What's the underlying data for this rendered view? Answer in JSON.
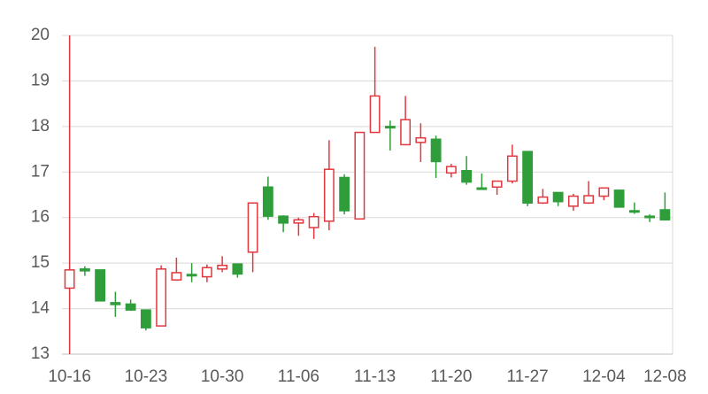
{
  "chart_data": {
    "type": "candlestick",
    "categories": [
      "10-16",
      null,
      null,
      null,
      null,
      "10-23",
      null,
      null,
      null,
      null,
      "10-30",
      null,
      null,
      null,
      null,
      "11-06",
      null,
      null,
      null,
      null,
      "11-13",
      null,
      null,
      null,
      null,
      "11-20",
      null,
      null,
      null,
      null,
      "11-27",
      null,
      null,
      null,
      null,
      "12-04",
      null,
      null,
      null,
      "12-08"
    ],
    "open": [
      14.45,
      14.87,
      14.85,
      14.13,
      14.1,
      13.97,
      13.62,
      14.63,
      14.75,
      14.7,
      14.87,
      14.98,
      15.24,
      16.67,
      16.03,
      15.88,
      15.78,
      15.92,
      16.88,
      15.97,
      17.87,
      18.0,
      17.6,
      17.65,
      17.72,
      16.98,
      17.03,
      16.65,
      16.67,
      16.8,
      17.45,
      16.32,
      16.55,
      16.25,
      16.32,
      16.47,
      16.6,
      16.15,
      16.03,
      16.17
    ],
    "high": [
      20,
      14.93,
      14.85,
      14.37,
      14.2,
      13.97,
      14.95,
      15.12,
      15.0,
      14.97,
      15.15,
      14.98,
      16.32,
      16.9,
      16.05,
      16.0,
      16.1,
      17.7,
      16.95,
      17.87,
      19.75,
      18.13,
      18.67,
      18.07,
      17.8,
      17.18,
      17.35,
      16.97,
      16.8,
      17.6,
      17.45,
      16.63,
      16.55,
      16.52,
      16.8,
      16.65,
      16.6,
      16.33,
      16.07,
      16.55
    ],
    "low": [
      13,
      14.72,
      14.17,
      13.82,
      13.95,
      13.52,
      13.62,
      14.63,
      14.58,
      14.58,
      14.8,
      14.68,
      14.8,
      15.95,
      15.68,
      15.6,
      15.53,
      15.72,
      16.07,
      15.97,
      17.87,
      17.47,
      17.6,
      17.22,
      16.87,
      16.88,
      16.72,
      16.62,
      16.5,
      16.75,
      16.25,
      16.3,
      16.25,
      16.15,
      16.3,
      16.38,
      16.23,
      16.08,
      15.9,
      15.95
    ],
    "close": [
      14.85,
      14.83,
      14.17,
      14.09,
      13.97,
      13.58,
      14.87,
      14.79,
      14.72,
      14.9,
      14.95,
      14.76,
      16.32,
      16.03,
      15.88,
      15.95,
      16.02,
      17.06,
      16.15,
      17.87,
      18.67,
      17.97,
      18.15,
      17.75,
      17.23,
      17.12,
      16.78,
      16.62,
      16.8,
      17.35,
      16.32,
      16.45,
      16.35,
      16.47,
      16.48,
      16.65,
      16.23,
      16.12,
      16.0,
      15.95
    ],
    "up_color": "#e0383e",
    "down_color": "#2f9e3a",
    "ylim": [
      13,
      20
    ],
    "yticks": [
      13,
      14,
      15,
      16,
      17,
      18,
      19,
      20
    ],
    "grid": true
  }
}
